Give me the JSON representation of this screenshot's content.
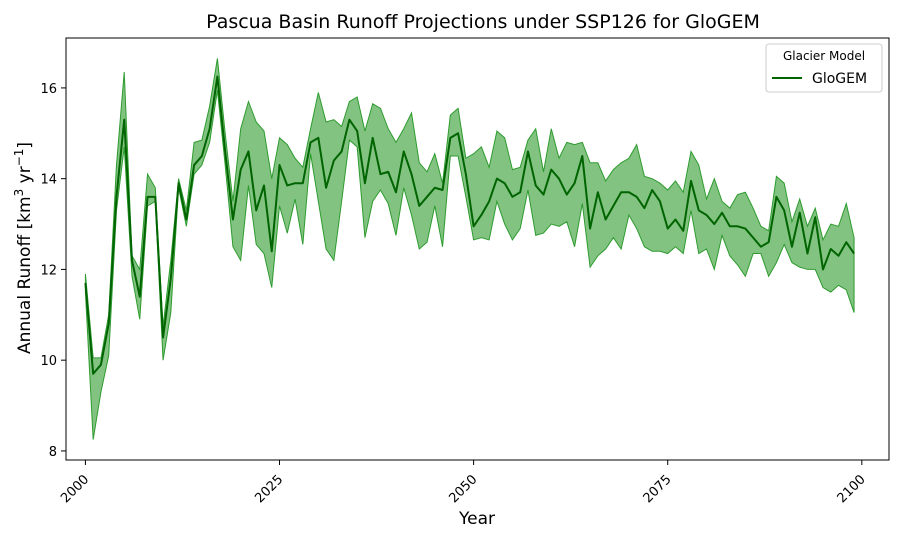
{
  "chart_data": {
    "type": "line",
    "title": "Pascua Basin Runoff Projections under SSP126 for GloGEM",
    "xlabel": "Year",
    "ylabel": "Annual Runoff [km³ yr⁻¹]",
    "xlim": [
      1997.5,
      2103.5
    ],
    "ylim": [
      7.8,
      17.1
    ],
    "xticks": [
      2000,
      2025,
      2050,
      2075,
      2100
    ],
    "yticks": [
      8,
      10,
      12,
      14,
      16
    ],
    "grid": false,
    "legend": {
      "title": "Glacier Model",
      "position": "top-right",
      "entries": [
        "GloGEM"
      ]
    },
    "colors": {
      "line": "#006400",
      "band": "#2e9b2e"
    },
    "x": [
      2000,
      2001,
      2002,
      2003,
      2004,
      2005,
      2006,
      2007,
      2008,
      2009,
      2010,
      2011,
      2012,
      2013,
      2014,
      2015,
      2016,
      2017,
      2018,
      2019,
      2020,
      2021,
      2022,
      2023,
      2024,
      2025,
      2026,
      2027,
      2028,
      2029,
      2030,
      2031,
      2032,
      2033,
      2034,
      2035,
      2036,
      2037,
      2038,
      2039,
      2040,
      2041,
      2042,
      2043,
      2044,
      2045,
      2046,
      2047,
      2048,
      2049,
      2050,
      2051,
      2052,
      2053,
      2054,
      2055,
      2056,
      2057,
      2058,
      2059,
      2060,
      2061,
      2062,
      2063,
      2064,
      2065,
      2066,
      2067,
      2068,
      2069,
      2070,
      2071,
      2072,
      2073,
      2074,
      2075,
      2076,
      2077,
      2078,
      2079,
      2080,
      2081,
      2082,
      2083,
      2084,
      2085,
      2086,
      2087,
      2088,
      2089,
      2090,
      2091,
      2092,
      2093,
      2094,
      2095,
      2096,
      2097,
      2098,
      2099
    ],
    "series": [
      {
        "name": "GloGEM",
        "values": [
          11.7,
          9.7,
          9.9,
          10.8,
          13.6,
          15.3,
          12.2,
          11.4,
          13.6,
          13.6,
          10.5,
          11.8,
          13.9,
          13.1,
          14.3,
          14.5,
          15.1,
          16.25,
          14.6,
          13.1,
          14.2,
          14.6,
          13.3,
          13.85,
          12.4,
          14.3,
          13.85,
          13.9,
          13.9,
          14.8,
          14.9,
          13.8,
          14.4,
          14.6,
          15.3,
          15.05,
          13.9,
          14.9,
          14.1,
          14.15,
          13.7,
          14.6,
          14.1,
          13.4,
          13.6,
          13.8,
          13.75,
          14.9,
          15.0,
          14.1,
          12.95,
          13.2,
          13.5,
          14.0,
          13.9,
          13.6,
          13.7,
          14.6,
          13.85,
          13.65,
          14.2,
          14.0,
          13.65,
          13.9,
          14.5,
          12.9,
          13.7,
          13.1,
          13.4,
          13.7,
          13.7,
          13.6,
          13.35,
          13.75,
          13.5,
          12.9,
          13.1,
          12.85,
          13.95,
          13.3,
          13.2,
          13.0,
          13.25,
          12.95,
          12.95,
          12.9,
          12.7,
          12.5,
          12.6,
          13.6,
          13.3,
          12.5,
          13.25,
          12.35,
          13.15,
          12.0,
          12.45,
          12.3,
          12.6,
          12.35
        ]
      }
    ],
    "band": {
      "upper": [
        11.9,
        10.05,
        10.05,
        11.0,
        14.3,
        16.35,
        12.3,
        12.0,
        14.1,
        13.8,
        10.75,
        12.2,
        14.0,
        13.3,
        14.8,
        14.85,
        15.6,
        16.65,
        15.0,
        13.5,
        15.1,
        15.7,
        15.25,
        15.05,
        14.0,
        14.9,
        14.75,
        14.45,
        14.25,
        15.1,
        15.9,
        15.25,
        15.3,
        15.15,
        15.7,
        15.8,
        15.05,
        15.65,
        15.55,
        15.1,
        14.8,
        15.1,
        15.45,
        14.35,
        14.15,
        14.55,
        13.9,
        15.4,
        15.55,
        14.45,
        14.55,
        14.7,
        14.25,
        15.05,
        14.9,
        14.2,
        14.25,
        14.85,
        15.1,
        14.15,
        15.1,
        14.45,
        14.8,
        14.75,
        14.8,
        14.35,
        14.35,
        13.95,
        14.2,
        14.35,
        14.45,
        14.75,
        14.05,
        14.0,
        13.9,
        13.75,
        13.95,
        13.7,
        14.6,
        14.3,
        13.55,
        14.0,
        13.5,
        13.35,
        13.65,
        13.7,
        13.35,
        12.95,
        12.85,
        14.05,
        13.9,
        13.05,
        13.55,
        12.95,
        13.35,
        12.65,
        13.0,
        12.95,
        13.45,
        12.7
      ],
      "lower": [
        11.5,
        8.25,
        9.3,
        10.1,
        13.3,
        14.7,
        11.85,
        10.9,
        13.4,
        13.5,
        10.0,
        11.05,
        13.8,
        12.95,
        14.1,
        14.3,
        14.8,
        15.95,
        14.3,
        12.5,
        12.2,
        13.85,
        12.55,
        12.35,
        11.6,
        13.4,
        12.8,
        13.55,
        12.55,
        14.55,
        13.5,
        12.45,
        12.2,
        13.5,
        14.85,
        14.7,
        12.7,
        13.5,
        13.75,
        13.45,
        12.75,
        13.8,
        13.2,
        12.45,
        12.6,
        13.4,
        12.5,
        14.5,
        14.5,
        13.6,
        12.65,
        12.7,
        12.65,
        13.5,
        13.0,
        12.65,
        12.9,
        13.75,
        12.75,
        12.8,
        13.0,
        12.95,
        13.05,
        12.5,
        13.45,
        12.05,
        12.3,
        12.45,
        12.7,
        12.45,
        13.2,
        12.9,
        12.5,
        12.4,
        12.4,
        12.35,
        12.5,
        12.35,
        13.3,
        12.35,
        12.45,
        12.0,
        12.75,
        12.3,
        12.1,
        11.85,
        12.35,
        12.35,
        11.85,
        12.15,
        12.55,
        12.15,
        12.05,
        12.0,
        12.0,
        11.6,
        11.5,
        11.65,
        11.55,
        11.05
      ]
    }
  }
}
